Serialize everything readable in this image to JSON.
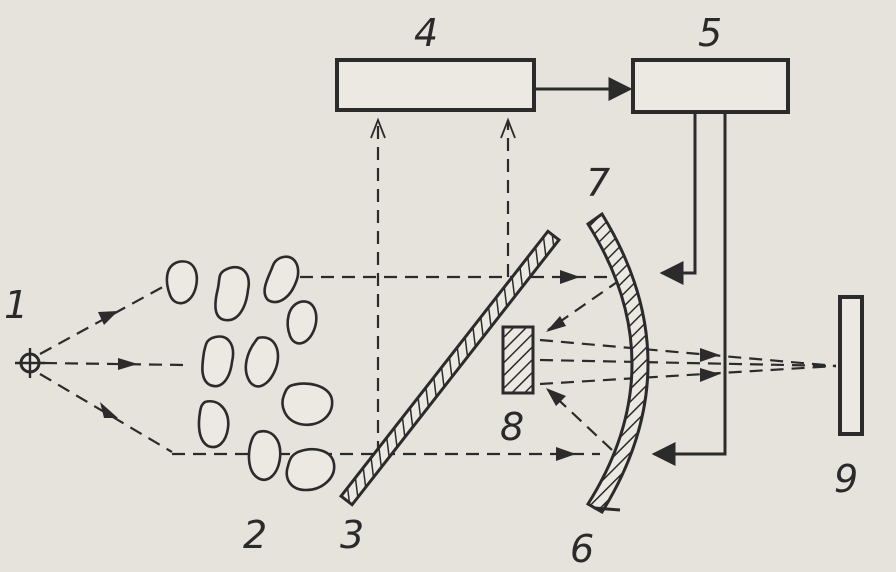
{
  "labels": {
    "source": "1",
    "scatterers": "2",
    "beam_splitter": "3",
    "block_4": "4",
    "block_5": "5",
    "mirror_6": "6",
    "mirror_7": "7",
    "element_8": "8",
    "screen_9": "9"
  },
  "colors": {
    "ink": "#2b2b2b",
    "paper": "#e6e3dc"
  }
}
